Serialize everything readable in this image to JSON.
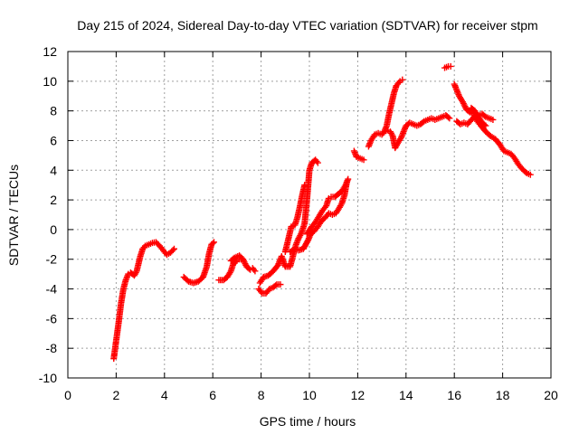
{
  "chart_data": {
    "type": "scatter",
    "title": "Day 215 of 2024, Sidereal Day-to-day VTEC variation (SDTVAR) for receiver stpm",
    "xlabel": "GPS time / hours",
    "ylabel": "SDTVAR / TECUs",
    "xlim": [
      0,
      20
    ],
    "ylim": [
      -10,
      12
    ],
    "xticks": [
      0,
      2,
      4,
      6,
      8,
      10,
      12,
      14,
      16,
      18,
      20
    ],
    "yticks": [
      -10,
      -8,
      -6,
      -4,
      -2,
      0,
      2,
      4,
      6,
      8,
      10,
      12
    ],
    "grid": true,
    "marker": "+",
    "color": "#ff0000",
    "series": [
      {
        "name": "SDTVAR",
        "segments": [
          [
            [
              1.9,
              -8.7
            ],
            [
              2.0,
              -7.5
            ],
            [
              2.1,
              -6.3
            ],
            [
              2.2,
              -5.0
            ],
            [
              2.3,
              -4.0
            ],
            [
              2.4,
              -3.4
            ],
            [
              2.5,
              -3.0
            ],
            [
              2.6,
              -2.9
            ],
            [
              2.75,
              -3.1
            ],
            [
              2.85,
              -2.8
            ],
            [
              3.0,
              -1.8
            ],
            [
              3.1,
              -1.3
            ],
            [
              3.2,
              -1.1
            ],
            [
              3.35,
              -1.0
            ],
            [
              3.5,
              -0.9
            ],
            [
              3.65,
              -0.85
            ],
            [
              3.8,
              -1.1
            ],
            [
              3.95,
              -1.4
            ],
            [
              4.1,
              -1.7
            ],
            [
              4.25,
              -1.55
            ],
            [
              4.4,
              -1.3
            ]
          ],
          [
            [
              4.8,
              -3.2
            ],
            [
              5.0,
              -3.5
            ],
            [
              5.2,
              -3.6
            ],
            [
              5.4,
              -3.5
            ],
            [
              5.6,
              -3.2
            ],
            [
              5.75,
              -2.5
            ],
            [
              5.85,
              -1.6
            ],
            [
              5.95,
              -1.0
            ],
            [
              6.05,
              -0.85
            ]
          ],
          [
            [
              6.25,
              -3.4
            ],
            [
              6.45,
              -3.4
            ],
            [
              6.6,
              -3.2
            ],
            [
              6.75,
              -2.8
            ],
            [
              6.85,
              -2.3
            ],
            [
              7.0,
              -2.1
            ],
            [
              7.1,
              -2.0
            ],
            [
              7.25,
              -2.0
            ],
            [
              7.4,
              -2.5
            ],
            [
              7.55,
              -2.7
            ],
            [
              7.65,
              -2.6
            ],
            [
              7.75,
              -2.8
            ]
          ],
          [
            [
              6.75,
              -2.1
            ],
            [
              6.9,
              -1.9
            ],
            [
              7.1,
              -1.75
            ],
            [
              7.25,
              -2.0
            ]
          ],
          [
            [
              7.9,
              -4.0
            ],
            [
              8.05,
              -4.3
            ],
            [
              8.2,
              -4.3
            ],
            [
              8.35,
              -4.0
            ],
            [
              8.5,
              -3.9
            ],
            [
              8.65,
              -3.7
            ],
            [
              8.8,
              -3.7
            ]
          ],
          [
            [
              7.95,
              -3.6
            ],
            [
              8.1,
              -3.2
            ],
            [
              8.3,
              -3.1
            ],
            [
              8.5,
              -2.8
            ],
            [
              8.7,
              -2.4
            ],
            [
              8.85,
              -1.8
            ],
            [
              9.0,
              -2.5
            ],
            [
              9.2,
              -2.5
            ],
            [
              9.35,
              -1.6
            ],
            [
              9.45,
              -1.0
            ],
            [
              9.55,
              -0.6
            ],
            [
              9.65,
              -0.3
            ],
            [
              9.72,
              0.0
            ],
            [
              9.8,
              0.4
            ],
            [
              9.85,
              1.2
            ],
            [
              9.9,
              2.0
            ],
            [
              9.95,
              3.0
            ],
            [
              10.0,
              4.0
            ],
            [
              10.1,
              4.5
            ],
            [
              10.25,
              4.7
            ],
            [
              10.35,
              4.5
            ]
          ],
          [
            [
              9.0,
              -1.5
            ],
            [
              9.15,
              -0.5
            ],
            [
              9.25,
              0.2
            ],
            [
              9.4,
              0.3
            ],
            [
              9.5,
              0.8
            ],
            [
              9.6,
              1.5
            ],
            [
              9.7,
              2.3
            ],
            [
              9.8,
              3.0
            ]
          ],
          [
            [
              9.2,
              -1.5
            ],
            [
              9.4,
              -1.3
            ],
            [
              9.55,
              -1.4
            ],
            [
              9.75,
              -1.3
            ],
            [
              9.95,
              -0.7
            ],
            [
              10.05,
              -0.3
            ],
            [
              10.2,
              -0.1
            ],
            [
              10.35,
              0.2
            ],
            [
              10.5,
              0.6
            ],
            [
              10.65,
              0.8
            ],
            [
              10.8,
              1.1
            ],
            [
              10.95,
              1.0
            ],
            [
              11.1,
              1.1
            ],
            [
              11.25,
              1.5
            ],
            [
              11.35,
              1.8
            ],
            [
              11.45,
              2.3
            ],
            [
              11.55,
              3.2
            ]
          ],
          [
            [
              9.9,
              -0.3
            ],
            [
              10.1,
              0.2
            ],
            [
              10.25,
              0.5
            ],
            [
              10.4,
              0.9
            ],
            [
              10.55,
              1.3
            ],
            [
              10.7,
              1.6
            ],
            [
              10.8,
              2.1
            ],
            [
              10.9,
              2.2
            ],
            [
              11.05,
              2.2
            ],
            [
              11.2,
              2.4
            ],
            [
              11.35,
              2.6
            ],
            [
              11.5,
              3.0
            ],
            [
              11.6,
              3.4
            ]
          ],
          [
            [
              11.85,
              5.3
            ],
            [
              11.95,
              4.9
            ],
            [
              12.1,
              4.8
            ],
            [
              12.25,
              4.7
            ]
          ],
          [
            [
              12.45,
              5.6
            ],
            [
              12.55,
              6.0
            ],
            [
              12.7,
              6.4
            ],
            [
              12.85,
              6.5
            ],
            [
              13.0,
              6.4
            ],
            [
              13.1,
              6.6
            ],
            [
              13.2,
              7.0
            ],
            [
              13.3,
              7.8
            ],
            [
              13.4,
              8.5
            ],
            [
              13.5,
              9.2
            ],
            [
              13.6,
              9.7
            ],
            [
              13.75,
              10.0
            ],
            [
              13.85,
              10.1
            ]
          ],
          [
            [
              13.1,
              6.6
            ],
            [
              13.25,
              6.7
            ],
            [
              13.35,
              6.6
            ],
            [
              13.45,
              6.3
            ],
            [
              13.55,
              5.5
            ],
            [
              13.65,
              5.8
            ],
            [
              13.8,
              6.2
            ],
            [
              13.9,
              6.6
            ],
            [
              14.0,
              7.0
            ],
            [
              14.15,
              7.2
            ],
            [
              14.3,
              7.1
            ],
            [
              14.45,
              7.0
            ],
            [
              14.6,
              7.1
            ],
            [
              14.75,
              7.3
            ],
            [
              14.9,
              7.4
            ],
            [
              15.05,
              7.5
            ],
            [
              15.2,
              7.4
            ],
            [
              15.35,
              7.5
            ],
            [
              15.5,
              7.6
            ],
            [
              15.65,
              7.7
            ],
            [
              15.8,
              7.5
            ]
          ],
          [
            [
              15.6,
              10.9
            ],
            [
              15.75,
              11.0
            ],
            [
              15.85,
              11.0
            ]
          ],
          [
            [
              16.0,
              9.8
            ],
            [
              16.1,
              9.4
            ],
            [
              16.2,
              9.0
            ],
            [
              16.35,
              8.6
            ],
            [
              16.5,
              8.1
            ],
            [
              16.65,
              7.9
            ],
            [
              16.8,
              7.8
            ],
            [
              16.95,
              7.3
            ],
            [
              17.1,
              7.0
            ],
            [
              17.3,
              6.6
            ],
            [
              17.5,
              6.3
            ],
            [
              17.7,
              6.1
            ],
            [
              17.9,
              5.7
            ],
            [
              18.05,
              5.3
            ],
            [
              18.2,
              5.2
            ],
            [
              18.35,
              5.1
            ],
            [
              18.5,
              4.8
            ],
            [
              18.65,
              4.4
            ],
            [
              18.8,
              4.1
            ],
            [
              19.0,
              3.8
            ],
            [
              19.15,
              3.7
            ]
          ],
          [
            [
              16.1,
              7.3
            ],
            [
              16.25,
              7.1
            ],
            [
              16.4,
              7.2
            ],
            [
              16.55,
              7.1
            ],
            [
              16.7,
              7.4
            ],
            [
              16.85,
              7.6
            ],
            [
              17.0,
              7.7
            ],
            [
              17.15,
              7.8
            ],
            [
              17.3,
              7.6
            ],
            [
              17.45,
              7.5
            ],
            [
              17.6,
              7.4
            ]
          ],
          [
            [
              16.7,
              8.2
            ],
            [
              16.85,
              8.0
            ],
            [
              17.0,
              7.6
            ],
            [
              17.15,
              7.2
            ],
            [
              17.3,
              7.0
            ]
          ]
        ]
      }
    ]
  }
}
